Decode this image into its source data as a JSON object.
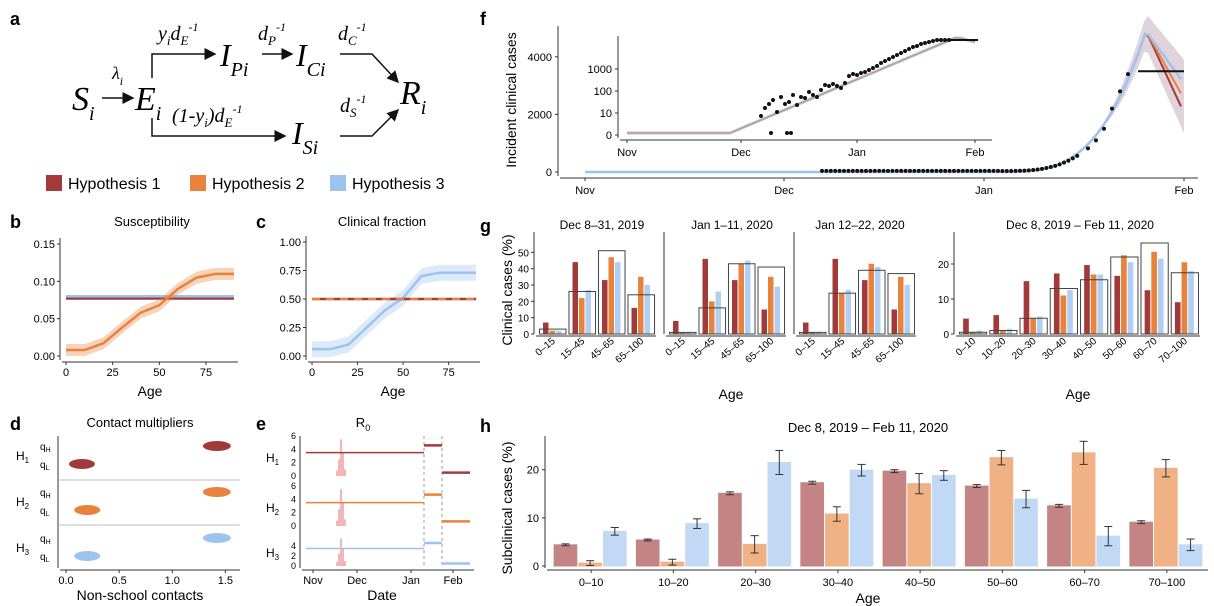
{
  "colors": {
    "h1": "#a23a3a",
    "h2": "#e8823c",
    "h3": "#9dc3ef"
  },
  "legend": {
    "items": [
      "Hypothesis 1",
      "Hypothesis 2",
      "Hypothesis 3"
    ]
  },
  "panels": {
    "a": {
      "letter": "a"
    },
    "b": {
      "letter": "b",
      "title": "Susceptibility",
      "xlabel": "Age"
    },
    "c": {
      "letter": "c",
      "title": "Clinical fraction",
      "xlabel": "Age"
    },
    "d": {
      "letter": "d",
      "title": "Contact multipliers",
      "xlabel": "Non-school contacts"
    },
    "e": {
      "letter": "e",
      "title": "R",
      "title_sub": "0",
      "xlabel": "Date"
    },
    "f": {
      "letter": "f",
      "ylabel": "Incident clinical cases"
    },
    "g": {
      "letter": "g",
      "ylabel": "Clinical cases (%)",
      "xlabel": "Age"
    },
    "h": {
      "letter": "h",
      "title": "Dec 8, 2019 – Feb 11, 2020",
      "ylabel": "Subclinical cases (%)",
      "xlabel": "Age"
    }
  },
  "chart_data": [
    {
      "panel": "b",
      "type": "line",
      "title": "Susceptibility",
      "xlabel": "Age",
      "ylabel": "",
      "xlim": [
        0,
        90
      ],
      "ylim": [
        0,
        0.15
      ],
      "xticks": [
        "0",
        "25",
        "50",
        "75"
      ],
      "yticks": [
        "0.00",
        "0.05",
        "0.10",
        "0.15"
      ],
      "x": [
        0,
        10,
        20,
        30,
        40,
        50,
        60,
        70,
        80,
        90
      ],
      "series": [
        {
          "name": "Hypothesis 1",
          "values": [
            0.077,
            0.077,
            0.077,
            0.077,
            0.077,
            0.077,
            0.077,
            0.077,
            0.077,
            0.077
          ]
        },
        {
          "name": "Hypothesis 2",
          "values": [
            0.008,
            0.008,
            0.017,
            0.038,
            0.058,
            0.068,
            0.09,
            0.105,
            0.11,
            0.11
          ]
        },
        {
          "name": "Hypothesis 3",
          "values": [
            0.08,
            0.08,
            0.08,
            0.08,
            0.08,
            0.08,
            0.08,
            0.08,
            0.08,
            0.08
          ]
        }
      ]
    },
    {
      "panel": "c",
      "type": "line",
      "title": "Clinical fraction",
      "xlabel": "Age",
      "ylabel": "",
      "xlim": [
        0,
        90
      ],
      "ylim": [
        0,
        1
      ],
      "xticks": [
        "0",
        "25",
        "50",
        "75"
      ],
      "yticks": [
        "0.00",
        "0.25",
        "0.50",
        "0.75",
        "1.00"
      ],
      "x": [
        0,
        10,
        20,
        30,
        40,
        50,
        60,
        70,
        80,
        90
      ],
      "series": [
        {
          "name": "Hypothesis 1",
          "values": [
            0.5,
            0.5,
            0.5,
            0.5,
            0.5,
            0.5,
            0.5,
            0.5,
            0.5,
            0.5
          ]
        },
        {
          "name": "Hypothesis 2",
          "values": [
            0.5,
            0.5,
            0.5,
            0.5,
            0.5,
            0.5,
            0.5,
            0.5,
            0.5,
            0.5
          ]
        },
        {
          "name": "Hypothesis 3",
          "values": [
            0.06,
            0.06,
            0.1,
            0.25,
            0.4,
            0.51,
            0.7,
            0.73,
            0.73,
            0.73
          ]
        }
      ]
    },
    {
      "panel": "d",
      "type": "scatter",
      "title": "Contact multipliers",
      "xlabel": "Non-school contacts",
      "xlim": [
        0,
        1.65
      ],
      "xticks": [
        "0.0",
        "0.5",
        "1.0",
        "1.5"
      ],
      "groups": [
        {
          "label": "H1",
          "qH": 1.42,
          "qL": 0.15
        },
        {
          "label": "H2",
          "qH": 1.42,
          "qL": 0.2
        },
        {
          "label": "H3",
          "qH": 1.42,
          "qL": 0.2
        }
      ]
    },
    {
      "panel": "e",
      "type": "line",
      "title": "R0",
      "xlabel": "Date",
      "ylim": [
        0,
        6
      ],
      "yticks": [
        "0",
        "2",
        "4",
        "6"
      ],
      "xticks": [
        "Nov",
        "Dec",
        "Jan",
        "Feb"
      ],
      "series": [
        {
          "name": "H1",
          "before": 3.5,
          "during": 4.6,
          "after": 0.5
        },
        {
          "name": "H2",
          "before": 3.5,
          "during": 4.7,
          "after": 0.7
        },
        {
          "name": "H3",
          "before": 3.5,
          "during": 4.6,
          "after": 0.5
        }
      ]
    },
    {
      "panel": "f",
      "type": "line",
      "ylabel": "Incident clinical cases",
      "yticks": [
        "0",
        "2000",
        "4000"
      ],
      "xticks": [
        "Nov",
        "Dec",
        "Jan",
        "Feb"
      ],
      "inset_yticks": [
        "0",
        "10",
        "100",
        "1000"
      ],
      "inset_xticks": [
        "Nov",
        "Dec",
        "Jan",
        "Feb"
      ],
      "observed_plateau": 3500
    },
    {
      "panel": "g",
      "type": "bar",
      "ylabel": "Clinical cases (%)",
      "xlabel": "Age",
      "subplots": [
        {
          "title": "Dec 8–31, 2019",
          "categories": [
            "0–15",
            "15–45",
            "45–65",
            "65–100"
          ],
          "ylim": [
            0,
            60
          ],
          "yticks": [],
          "observed": [
            3,
            26,
            51,
            24
          ],
          "h1": [
            7,
            44,
            33,
            16
          ],
          "h2": [
            2,
            22,
            47,
            35
          ],
          "h3": [
            2,
            27,
            44,
            30
          ]
        },
        {
          "title": "Jan 1–11, 2020",
          "categories": [
            "0–15",
            "15–45",
            "45–65",
            "65–100"
          ],
          "ylim": [
            0,
            60
          ],
          "yticks": [],
          "observed": [
            1,
            16,
            43,
            41
          ],
          "h1": [
            8,
            46,
            33,
            15
          ],
          "h2": [
            1,
            20,
            43,
            35
          ],
          "h3": [
            1,
            26,
            45,
            29
          ]
        },
        {
          "title": "Jan 12–22, 2020",
          "categories": [
            "0–15",
            "15–45",
            "45–65",
            "65–100"
          ],
          "ylim": [
            0,
            60
          ],
          "yticks": [],
          "observed": [
            1,
            25,
            39,
            37
          ],
          "h1": [
            7,
            46,
            33,
            15
          ],
          "h2": [
            1,
            25,
            43,
            35
          ],
          "h3": [
            1,
            27,
            41,
            30
          ]
        },
        {
          "title": "Dec 8, 2019 – Feb 11, 2020",
          "categories": [
            "0–10",
            "10–20",
            "20–30",
            "30–40",
            "40–50",
            "50–60",
            "60–70",
            "70–100"
          ],
          "ylim": [
            0,
            28
          ],
          "yticks": [
            "0",
            "10",
            "20"
          ],
          "observed": [
            0.5,
            1,
            4.5,
            13,
            15.5,
            22,
            26,
            17.5
          ],
          "h1": [
            4.4,
            5.4,
            15.1,
            17.3,
            19.7,
            16.6,
            12.5,
            9.1
          ],
          "h2": [
            0.5,
            1,
            4.5,
            11,
            17,
            22.5,
            23.5,
            20.5
          ],
          "h3": [
            1,
            1.5,
            5,
            12.5,
            17,
            20.5,
            21.5,
            18
          ]
        }
      ]
    },
    {
      "panel": "h",
      "type": "bar",
      "title": "Dec 8, 2019 – Feb 11, 2020",
      "ylabel": "Subclinical cases (%)",
      "xlabel": "Age",
      "categories": [
        "0–10",
        "10–20",
        "20–30",
        "30–40",
        "40–50",
        "50–60",
        "60–70",
        "70–100"
      ],
      "ylim": [
        0,
        27
      ],
      "yticks": [
        "0",
        "10",
        "20"
      ],
      "series": [
        {
          "name": "Hypothesis 1",
          "values": [
            4.4,
            5.4,
            15.1,
            17.3,
            19.7,
            16.6,
            12.5,
            9.1
          ]
        },
        {
          "name": "Hypothesis 2",
          "values": [
            0.6,
            0.8,
            4.5,
            10.8,
            17.1,
            22.5,
            23.5,
            20.3
          ]
        },
        {
          "name": "Hypothesis 3",
          "values": [
            7.2,
            8.8,
            21.5,
            19.9,
            18.8,
            13.9,
            6.2,
            4.4
          ]
        }
      ],
      "errors": [
        [
          0.2,
          0.2,
          0.3,
          0.3,
          0.3,
          0.3,
          0.3,
          0.3
        ],
        [
          0.5,
          0.6,
          1.8,
          1.5,
          2.1,
          1.5,
          2.4,
          1.8
        ],
        [
          0.8,
          1.0,
          2.5,
          1.2,
          1.0,
          1.8,
          2.0,
          1.2
        ]
      ]
    }
  ]
}
